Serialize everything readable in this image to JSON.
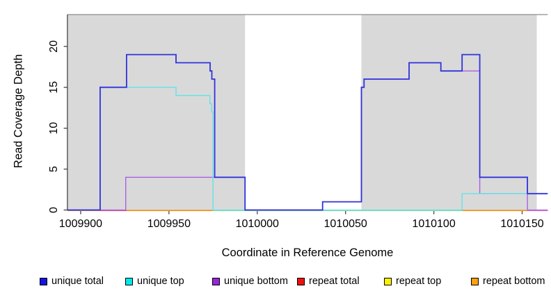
{
  "chart_data": {
    "type": "line",
    "step": "after",
    "title": "",
    "xlabel": "Coordinate in Reference Genome",
    "ylabel": "Read Coverage Depth",
    "xlim": [
      1009892.5,
      1010164.5
    ],
    "ylim": [
      0,
      23.89
    ],
    "x_ticks": [
      1009900,
      1009950,
      1010000,
      1010050,
      1010100,
      1010150
    ],
    "y_ticks": [
      0,
      5,
      10,
      15,
      20
    ],
    "grid": false,
    "legend_position": "bottom",
    "highlight_regions": [
      {
        "name": "repeat-region-left",
        "x1": 1009892.5,
        "x2": 1009993.1,
        "fill": "#d9d9d9"
      },
      {
        "name": "repeat-region-right",
        "x1": 1010059.0,
        "x2": 1010158.3,
        "fill": "#d9d9d9"
      }
    ],
    "series": [
      {
        "name": "repeat top",
        "color": "#f2ef30",
        "width": 1.4,
        "offset": 0.6,
        "points": [
          [
            1009892.5,
            0
          ]
        ]
      },
      {
        "name": "repeat total",
        "color": "#e05577",
        "width": 1.4,
        "offset": 0.6,
        "points": [
          [
            1009892.5,
            0
          ]
        ]
      },
      {
        "name": "repeat bottom",
        "color": "#ff9d1c",
        "width": 1.5,
        "offset": 0.6,
        "points": [
          [
            1009892.5,
            0
          ]
        ]
      },
      {
        "name": "unique bottom",
        "color": "#ab5fe3",
        "width": 1.4,
        "offset": 0,
        "points": [
          [
            1009892.5,
            0
          ],
          [
            1009925.5,
            4
          ],
          [
            1009993.1,
            0
          ],
          [
            1010037,
            1
          ],
          [
            1010059,
            15
          ],
          [
            1010060.5,
            16
          ],
          [
            1010086,
            18
          ],
          [
            1010104,
            17
          ],
          [
            1010126,
            2
          ],
          [
            1010153,
            0
          ]
        ]
      },
      {
        "name": "unique top",
        "color": "#63e3e8",
        "width": 1.4,
        "offset": 0,
        "points": [
          [
            1009892.5,
            0
          ],
          [
            1009911,
            15
          ],
          [
            1009954,
            14
          ],
          [
            1009973.2,
            13
          ],
          [
            1009974.2,
            12
          ],
          [
            1009974.9,
            0
          ],
          [
            1010116,
            2
          ]
        ]
      },
      {
        "name": "unique total",
        "color": "#3032dd",
        "width": 1.8,
        "offset": 0,
        "points": [
          [
            1009892.5,
            0
          ],
          [
            1009911,
            15
          ],
          [
            1009926,
            19
          ],
          [
            1009954,
            18
          ],
          [
            1009973.3,
            17
          ],
          [
            1009974.3,
            16
          ],
          [
            1009975.9,
            4
          ],
          [
            1009993.1,
            0
          ],
          [
            1010037,
            1
          ],
          [
            1010059,
            15
          ],
          [
            1010060.5,
            16
          ],
          [
            1010086,
            18
          ],
          [
            1010104,
            17
          ],
          [
            1010116,
            19
          ],
          [
            1010126,
            4
          ],
          [
            1010153,
            2
          ]
        ]
      }
    ],
    "baseline_overlays": [
      {
        "x1": 1009911,
        "x2": 1009926,
        "color": "#e05577"
      },
      {
        "x1": 1009974.9,
        "x2": 1010116,
        "color": "#94d894"
      },
      {
        "x1": 1010153,
        "x2": 1010164.5,
        "color": "#e878b8"
      }
    ],
    "legend": [
      {
        "label": "unique total",
        "fill": "#1414e0"
      },
      {
        "label": "unique top",
        "fill": "#00e8e8"
      },
      {
        "label": "unique bottom",
        "fill": "#9726d8"
      },
      {
        "label": "repeat total",
        "fill": "#ee1111"
      },
      {
        "label": "repeat top",
        "fill": "#fff000"
      },
      {
        "label": "repeat bottom",
        "fill": "#ffa010"
      }
    ]
  },
  "colors": {
    "background": "#ffffff",
    "panel_highlight": "#d9d9d9",
    "axis": "#454545",
    "box_top": "#8c8c8c",
    "text": "#000000"
  }
}
